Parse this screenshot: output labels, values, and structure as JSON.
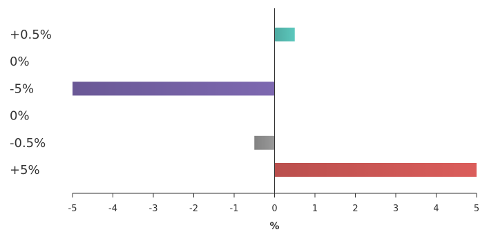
{
  "chart_data": {
    "type": "bar",
    "orientation": "horizontal",
    "categories": [
      "+0.5%",
      "0%",
      "-5%",
      "0%",
      "-0.5%",
      "+5%"
    ],
    "values": [
      0.5,
      0,
      -5,
      0,
      -0.5,
      5
    ],
    "bar_colors": [
      "#5cc8bd",
      "#999999",
      "#7d68b0",
      "#999999",
      "#999999",
      "#db5d5b"
    ],
    "xlabel": "%",
    "ylabel": "",
    "title": "",
    "xlim": [
      -5,
      5
    ],
    "xticks": [
      -5,
      -4,
      -3,
      -2,
      -1,
      0,
      1,
      2,
      3,
      4,
      5
    ],
    "grid": false,
    "legend": "none"
  }
}
